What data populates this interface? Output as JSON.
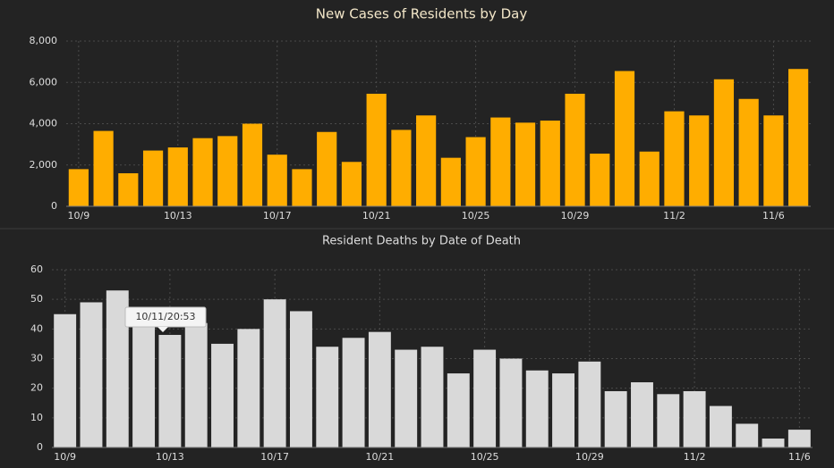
{
  "chart_data": [
    {
      "type": "bar",
      "title": "New Cases of Residents by Day",
      "categories": [
        "10/9",
        null,
        null,
        null,
        "10/13",
        null,
        null,
        null,
        "10/17",
        null,
        null,
        null,
        "10/21",
        null,
        null,
        null,
        "10/25",
        null,
        null,
        null,
        "10/29",
        null,
        null,
        null,
        "11/2",
        null,
        null,
        null,
        "11/6",
        null
      ],
      "values": [
        1800,
        3650,
        1600,
        2700,
        2850,
        3300,
        3400,
        4000,
        2500,
        1800,
        3600,
        2150,
        5450,
        3700,
        4400,
        2350,
        3350,
        4300,
        4050,
        4150,
        5450,
        2550,
        6550,
        2650,
        4600,
        4400,
        6150,
        5200,
        4400,
        6650
      ],
      "color": "#ffad00",
      "ylim": [
        0,
        8000
      ],
      "yticks": [
        0,
        {
          "value": 2000,
          "label": "2,000"
        },
        {
          "value": 4000,
          "label": "4,000"
        },
        {
          "value": 6000,
          "label": "6,000"
        },
        {
          "value": 8000,
          "label": "8,000"
        }
      ],
      "grid": true
    },
    {
      "type": "bar",
      "title": "Resident Deaths by Date of Death",
      "categories": [
        "10/9",
        null,
        null,
        null,
        "10/13",
        null,
        null,
        null,
        "10/17",
        null,
        null,
        null,
        "10/21",
        null,
        null,
        null,
        "10/25",
        null,
        null,
        null,
        "10/29",
        null,
        null,
        null,
        "11/2",
        null,
        null,
        null,
        "11/6"
      ],
      "values": [
        45,
        49,
        53,
        42,
        38,
        42,
        35,
        40,
        50,
        46,
        34,
        37,
        39,
        33,
        34,
        25,
        33,
        30,
        26,
        25,
        29,
        19,
        22,
        18,
        19,
        14,
        8,
        3,
        6
      ],
      "color": "#d9d9d9",
      "ylim": [
        0,
        60
      ],
      "yticks": [
        0,
        10,
        20,
        30,
        40,
        50,
        60
      ],
      "grid": true,
      "annotation": "10/11/20:53"
    }
  ]
}
